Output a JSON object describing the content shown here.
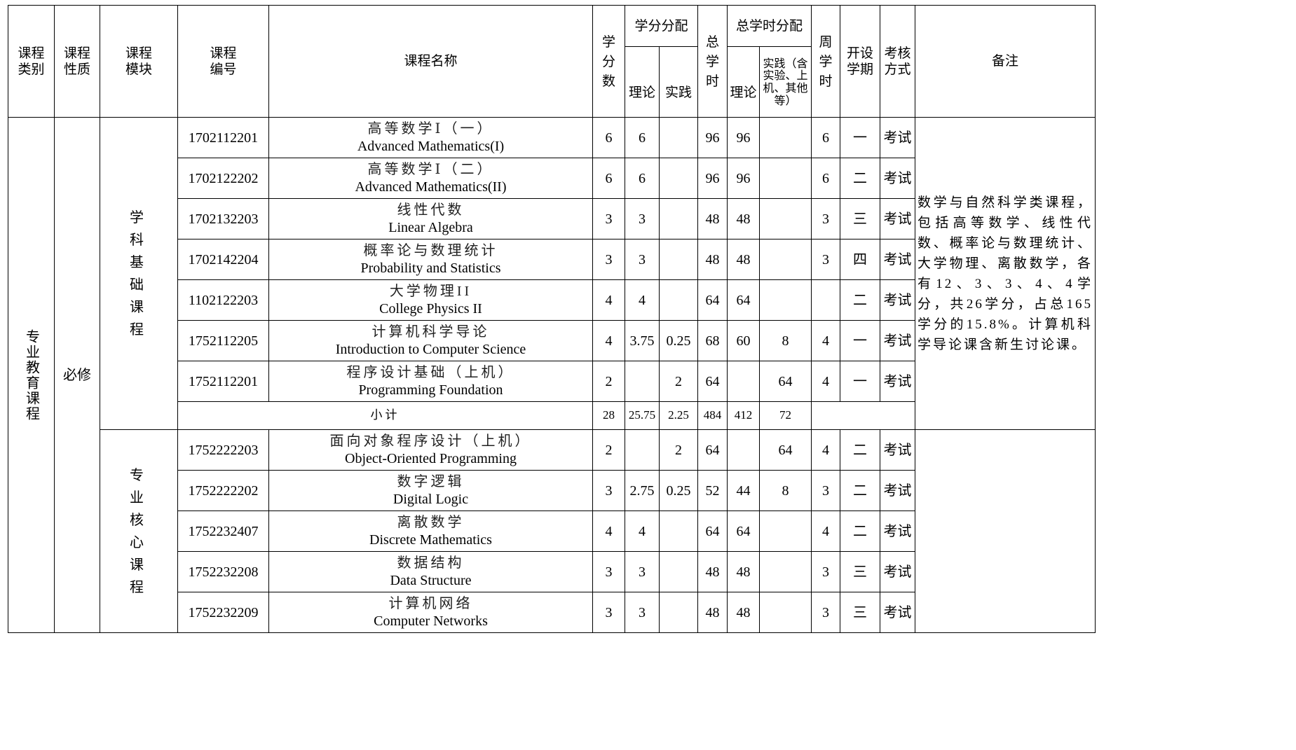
{
  "headers": {
    "category": "课程类别",
    "nature": "课程性质",
    "module": "课程模块",
    "code": "课程编号",
    "name": "课程名称",
    "credits": "学分数",
    "credit_dist": "学分分配",
    "credit_theory": "理论",
    "credit_practice": "实践",
    "total_hours": "总学时",
    "hour_dist": "总学时分配",
    "hour_theory": "理论",
    "hour_practice": "实践（含实验、上机、其他等）",
    "weekly_hours": "周学时",
    "semester": "开设学期",
    "exam": "考核方式",
    "remarks": "备注"
  },
  "category": "专业教育课程",
  "nature": "必修",
  "modules": [
    {
      "name": "学科基础课程",
      "remarks": "数学与自然科学类课程，包括高等数学、线性代数、概率论与数理统计、大学物理、离散数学，各有12、3、3、4、4学分，共26学分，占总165学分的15.8%。计算机科学导论课含新生讨论课。",
      "rows": [
        {
          "code": "1702112201",
          "cn": "高等数学Ⅰ（一）",
          "en": "Advanced Mathematics(I)",
          "credits": "6",
          "ct": "6",
          "cp": "",
          "hours": "96",
          "ht": "96",
          "hp": "",
          "weekly": "6",
          "sem": "一",
          "exam": "考试"
        },
        {
          "code": "1702122202",
          "cn": "高等数学Ⅰ（二）",
          "en": "Advanced Mathematics(II)",
          "credits": "6",
          "ct": "6",
          "cp": "",
          "hours": "96",
          "ht": "96",
          "hp": "",
          "weekly": "6",
          "sem": "二",
          "exam": "考试"
        },
        {
          "code": "1702132203",
          "cn": "线性代数",
          "en": "Linear Algebra",
          "credits": "3",
          "ct": "3",
          "cp": "",
          "hours": "48",
          "ht": "48",
          "hp": "",
          "weekly": "3",
          "sem": "三",
          "exam": "考试"
        },
        {
          "code": "1702142204",
          "cn": "概率论与数理统计",
          "en": "Probability and Statistics",
          "credits": "3",
          "ct": "3",
          "cp": "",
          "hours": "48",
          "ht": "48",
          "hp": "",
          "weekly": "3",
          "sem": "四",
          "exam": "考试"
        },
        {
          "code": "1102122203",
          "cn": "大学物理II",
          "en": "College Physics II",
          "credits": "4",
          "ct": "4",
          "cp": "",
          "hours": "64",
          "ht": "64",
          "hp": "",
          "weekly": "",
          "sem": "二",
          "exam": "考试"
        },
        {
          "code": "1752112205",
          "cn": "计算机科学导论",
          "en": "Introduction to Computer Science",
          "credits": "4",
          "ct": "3.75",
          "cp": "0.25",
          "hours": "68",
          "ht": "60",
          "hp": "8",
          "weekly": "4",
          "sem": "一",
          "exam": "考试"
        },
        {
          "code": "1752112201",
          "cn": "程序设计基础（上机）",
          "en": "Programming Foundation",
          "credits": "2",
          "ct": "",
          "cp": "2",
          "hours": "64",
          "ht": "",
          "hp": "64",
          "weekly": "4",
          "sem": "一",
          "exam": "考试"
        }
      ],
      "subtotal": {
        "label": "小计",
        "credits": "28",
        "ct": "25.75",
        "cp": "2.25",
        "hours": "484",
        "ht": "412",
        "hp": "72"
      }
    },
    {
      "name": "专业核心课程",
      "remarks": "",
      "rows": [
        {
          "code": "1752222203",
          "cn": "面向对象程序设计（上机）",
          "en": "Object-Oriented Programming",
          "credits": "2",
          "ct": "",
          "cp": "2",
          "hours": "64",
          "ht": "",
          "hp": "64",
          "weekly": "4",
          "sem": "二",
          "exam": "考试"
        },
        {
          "code": "1752222202",
          "cn": "数字逻辑",
          "en": "Digital Logic",
          "credits": "3",
          "ct": "2.75",
          "cp": "0.25",
          "hours": "52",
          "ht": "44",
          "hp": "8",
          "weekly": "3",
          "sem": "二",
          "exam": "考试"
        },
        {
          "code": "1752232407",
          "cn": "离散数学",
          "en": "Discrete Mathematics",
          "credits": "4",
          "ct": "4",
          "cp": "",
          "hours": "64",
          "ht": "64",
          "hp": "",
          "weekly": "4",
          "sem": "二",
          "exam": "考试"
        },
        {
          "code": "1752232208",
          "cn": "数据结构",
          "en": "Data Structure",
          "credits": "3",
          "ct": "3",
          "cp": "",
          "hours": "48",
          "ht": "48",
          "hp": "",
          "weekly": "3",
          "sem": "三",
          "exam": "考试"
        },
        {
          "code": "1752232209",
          "cn": "计算机网络",
          "en": "Computer Networks",
          "credits": "3",
          "ct": "3",
          "cp": "",
          "hours": "48",
          "ht": "48",
          "hp": "",
          "weekly": "3",
          "sem": "三",
          "exam": "考试"
        }
      ]
    }
  ]
}
